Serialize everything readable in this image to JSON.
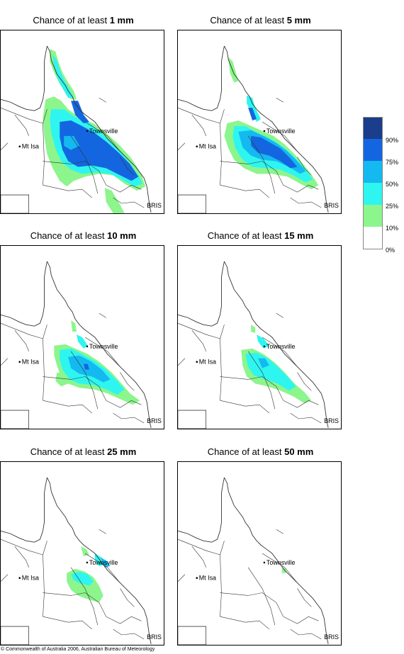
{
  "panels": [
    {
      "title_prefix": "Chance of at least ",
      "amount": "1 mm",
      "level": 1
    },
    {
      "title_prefix": "Chance of at least ",
      "amount": "5 mm",
      "level": 2
    },
    {
      "title_prefix": "Chance of at least ",
      "amount": "10 mm",
      "level": 3
    },
    {
      "title_prefix": "Chance of at least ",
      "amount": "15 mm",
      "level": 4
    },
    {
      "title_prefix": "Chance of at least ",
      "amount": "25 mm",
      "level": 5
    },
    {
      "title_prefix": "Chance of at least ",
      "amount": "50 mm",
      "level": 6
    }
  ],
  "places": {
    "townsville": "Townsville",
    "mt_isa": "Mt Isa",
    "bris": "BRIS"
  },
  "legend": {
    "ticks": [
      "90%",
      "75%",
      "50%",
      "25%",
      "10%",
      "0%"
    ],
    "colors": [
      "#1a3d8c",
      "#1466e0",
      "#14b9f0",
      "#2ef5f0",
      "#8cf58c",
      "#ffffff"
    ]
  },
  "copyright": "© Commonwealth of Australia 2006, Australian Bureau of Meteorology"
}
